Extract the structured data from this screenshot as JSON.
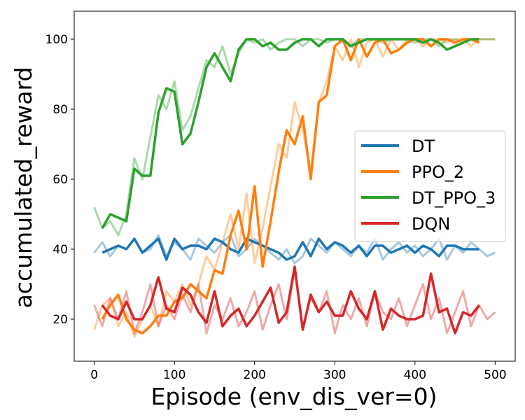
{
  "chart_data": {
    "type": "line",
    "xlabel": "Episode (env_dis_ver=0)",
    "ylabel": "accumulated_reward",
    "xlim": [
      -25,
      525
    ],
    "ylim": [
      8,
      108
    ],
    "xticks": [
      0,
      100,
      200,
      300,
      400,
      500
    ],
    "yticks": [
      20,
      40,
      60,
      80,
      100
    ],
    "legend_position": "center-right",
    "grid": false,
    "series": [
      {
        "name": "DT",
        "color": "#1f77b4",
        "raw_x": [
          0,
          10,
          20,
          30,
          40,
          50,
          60,
          70,
          80,
          90,
          100,
          110,
          120,
          130,
          140,
          150,
          160,
          170,
          180,
          190,
          200,
          210,
          220,
          230,
          240,
          250,
          260,
          270,
          280,
          290,
          300,
          310,
          320,
          330,
          340,
          350,
          360,
          370,
          380,
          390,
          400,
          410,
          420,
          430,
          440,
          450,
          460,
          470,
          480,
          490,
          500
        ],
        "raw_y": [
          39,
          42,
          38,
          41,
          40,
          43,
          39,
          40,
          44,
          38,
          42,
          40,
          37,
          43,
          41,
          39,
          42,
          44,
          38,
          40,
          43,
          41,
          39,
          37,
          40,
          36,
          38,
          43,
          41,
          39,
          42,
          40,
          38,
          41,
          39,
          43,
          37,
          40,
          42,
          39,
          41,
          38,
          40,
          43,
          37,
          41,
          39,
          42,
          40,
          38,
          39
        ],
        "x": [
          10,
          20,
          30,
          40,
          50,
          60,
          70,
          80,
          90,
          100,
          110,
          120,
          130,
          140,
          150,
          160,
          170,
          180,
          190,
          200,
          210,
          220,
          230,
          240,
          250,
          260,
          270,
          280,
          290,
          300,
          310,
          320,
          330,
          340,
          350,
          360,
          370,
          380,
          390,
          400,
          410,
          420,
          430,
          440,
          450,
          460,
          470,
          480
        ],
        "y": [
          39,
          40,
          41,
          40,
          43,
          39,
          41,
          43,
          37,
          43,
          40,
          41,
          41,
          40,
          43,
          42,
          40,
          39,
          43,
          42,
          41,
          40,
          39,
          37,
          38,
          42,
          38,
          43,
          40,
          42,
          41,
          39,
          41,
          38,
          41,
          41,
          39,
          40,
          41,
          39,
          41,
          40,
          38,
          41,
          41,
          40,
          40,
          40
        ]
      },
      {
        "name": "PPO_2",
        "color": "#ff7f0e",
        "raw_x": [
          0,
          10,
          20,
          30,
          40,
          50,
          60,
          70,
          80,
          90,
          100,
          110,
          120,
          130,
          140,
          150,
          160,
          170,
          180,
          190,
          200,
          210,
          220,
          230,
          240,
          250,
          260,
          270,
          280,
          290,
          300,
          310,
          320,
          330,
          340,
          350,
          360,
          370,
          380,
          390,
          400,
          410,
          420,
          430,
          440,
          450,
          460,
          470,
          480,
          490,
          500
        ],
        "raw_y": [
          17,
          24,
          26,
          18,
          22,
          15,
          20,
          24,
          18,
          28,
          25,
          30,
          24,
          30,
          38,
          34,
          42,
          50,
          40,
          56,
          36,
          46,
          58,
          70,
          66,
          82,
          74,
          62,
          82,
          88,
          98,
          94,
          100,
          92,
          99,
          100,
          95,
          100,
          97,
          100,
          100,
          98,
          100,
          100,
          99,
          100,
          100,
          98,
          100,
          100,
          100
        ],
        "x": [
          10,
          20,
          30,
          40,
          50,
          60,
          70,
          80,
          90,
          100,
          110,
          120,
          130,
          140,
          150,
          160,
          170,
          180,
          190,
          200,
          210,
          220,
          230,
          240,
          250,
          260,
          270,
          280,
          290,
          300,
          310,
          320,
          330,
          340,
          350,
          360,
          370,
          380,
          390,
          400,
          410,
          420,
          430,
          440,
          450,
          460,
          470,
          480
        ],
        "y": [
          20,
          24,
          27,
          20,
          17,
          16,
          18,
          21,
          21,
          25,
          26,
          30,
          28,
          26,
          34,
          33,
          44,
          51,
          40,
          58,
          35,
          48,
          62,
          74,
          70,
          78,
          60,
          82,
          84,
          98,
          100,
          94,
          100,
          95,
          99,
          100,
          96,
          97,
          99,
          100,
          100,
          98,
          100,
          100,
          99,
          100,
          100,
          99
        ]
      },
      {
        "name": "DT_PPO_3",
        "color": "#2ca02c",
        "raw_x": [
          0,
          10,
          20,
          30,
          40,
          50,
          60,
          70,
          80,
          90,
          100,
          110,
          120,
          130,
          140,
          150,
          160,
          170,
          180,
          190,
          200,
          210,
          220,
          230,
          240,
          250,
          260,
          270,
          280,
          290,
          300,
          310,
          320,
          330,
          340,
          350,
          360,
          370,
          380,
          390,
          400,
          410,
          420,
          430,
          440,
          450,
          460,
          470,
          480,
          490,
          500
        ],
        "raw_y": [
          52,
          46,
          48,
          44,
          50,
          66,
          60,
          72,
          84,
          80,
          88,
          74,
          78,
          86,
          94,
          92,
          98,
          90,
          96,
          100,
          99,
          100,
          97,
          99,
          100,
          100,
          98,
          100,
          100,
          99,
          100,
          100,
          98,
          100,
          100,
          100,
          99,
          100,
          100,
          100,
          99,
          100,
          100,
          98,
          100,
          100,
          99,
          100,
          100,
          100,
          100
        ],
        "x": [
          10,
          20,
          30,
          40,
          50,
          60,
          70,
          80,
          90,
          100,
          110,
          120,
          130,
          140,
          150,
          160,
          170,
          180,
          190,
          200,
          210,
          220,
          230,
          240,
          250,
          260,
          270,
          280,
          290,
          300,
          310,
          320,
          330,
          340,
          350,
          360,
          370,
          380,
          390,
          400,
          410,
          420,
          430,
          440,
          450,
          460,
          470,
          480
        ],
        "y": [
          46,
          50,
          49,
          48,
          63,
          61,
          61,
          79,
          86,
          85,
          70,
          73,
          82,
          92,
          96,
          92,
          88,
          97,
          100,
          100,
          98,
          99,
          97,
          97,
          99,
          100,
          100,
          98,
          100,
          100,
          100,
          98,
          99,
          100,
          100,
          100,
          100,
          100,
          100,
          100,
          99,
          100,
          99,
          97,
          98,
          99,
          100,
          100
        ]
      },
      {
        "name": "DQN",
        "color": "#d62728",
        "raw_x": [
          0,
          10,
          20,
          30,
          40,
          50,
          60,
          70,
          80,
          90,
          100,
          110,
          120,
          130,
          140,
          150,
          160,
          170,
          180,
          190,
          200,
          210,
          220,
          230,
          240,
          250,
          260,
          270,
          280,
          290,
          300,
          310,
          320,
          330,
          340,
          350,
          360,
          370,
          380,
          390,
          400,
          410,
          420,
          430,
          440,
          450,
          460,
          470,
          480,
          490,
          500
        ],
        "raw_y": [
          24,
          18,
          26,
          20,
          28,
          16,
          22,
          30,
          18,
          24,
          20,
          27,
          22,
          30,
          16,
          24,
          20,
          26,
          18,
          22,
          28,
          17,
          24,
          30,
          20,
          34,
          18,
          26,
          22,
          28,
          16,
          24,
          20,
          26,
          18,
          28,
          22,
          20,
          26,
          18,
          24,
          30,
          20,
          26,
          16,
          22,
          28,
          18,
          24,
          20,
          22
        ],
        "x": [
          10,
          20,
          30,
          40,
          50,
          60,
          70,
          80,
          90,
          100,
          110,
          120,
          130,
          140,
          150,
          160,
          170,
          180,
          190,
          200,
          210,
          220,
          230,
          240,
          250,
          260,
          270,
          280,
          290,
          300,
          310,
          320,
          330,
          340,
          350,
          360,
          370,
          380,
          390,
          400,
          410,
          420,
          430,
          440,
          450,
          460,
          470,
          480
        ],
        "y": [
          24,
          21,
          20,
          25,
          20,
          20,
          24,
          32,
          23,
          22,
          29,
          27,
          22,
          19,
          28,
          18,
          21,
          23,
          18,
          21,
          25,
          29,
          19,
          22,
          35,
          17,
          27,
          22,
          25,
          21,
          21,
          28,
          23,
          20,
          28,
          17,
          23,
          21,
          20,
          20,
          21,
          33,
          22,
          23,
          16,
          22,
          21,
          24
        ]
      }
    ]
  }
}
